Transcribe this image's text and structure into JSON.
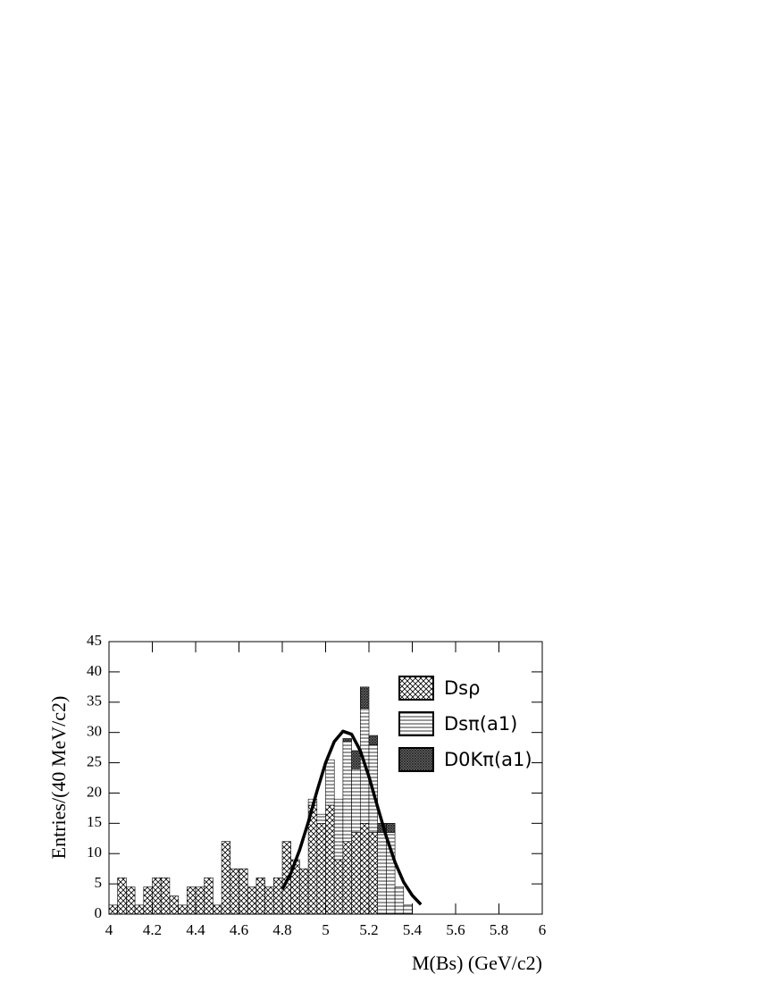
{
  "chart_data": {
    "type": "stacked_histogram",
    "xlabel": "M(Bs) (GeV/c2)",
    "ylabel": "Entries/(40 MeV/c2)",
    "bins": [
      4.0,
      4.04,
      4.08,
      4.12,
      4.16,
      4.2,
      4.24,
      4.28,
      4.32,
      4.36,
      4.4,
      4.44,
      4.48,
      4.52,
      4.56,
      4.6,
      4.64,
      4.68,
      4.72,
      4.76,
      4.8,
      4.84,
      4.88,
      4.92,
      4.96,
      5.0,
      5.04,
      5.08,
      5.12,
      5.16,
      5.2,
      5.24,
      5.28,
      5.32,
      5.36,
      5.4
    ],
    "series": [
      {
        "name": "Dsρ",
        "pattern": "crosshatch",
        "color": "#000000",
        "values": [
          1.5,
          6,
          4.5,
          1.5,
          4.5,
          6,
          6,
          3,
          1.5,
          4.5,
          4.5,
          6,
          1.5,
          12,
          7.5,
          7.5,
          4.5,
          6,
          4.5,
          6,
          12,
          9,
          7.5,
          18,
          15,
          18,
          9,
          12,
          13.5,
          15,
          13.5,
          0,
          0,
          0,
          0
        ]
      },
      {
        "name": "Dsπ(a1)",
        "pattern": "horizontal",
        "color": "#000000",
        "values": [
          0,
          0,
          0,
          0,
          0,
          0,
          0,
          0,
          0,
          0,
          0,
          0,
          0,
          0,
          0,
          0,
          0,
          0,
          0,
          0,
          0,
          0,
          0,
          1,
          1.5,
          7.5,
          10,
          16.5,
          10.5,
          19,
          14.5,
          13.5,
          13.5,
          4.5,
          1.5
        ]
      },
      {
        "name": "D0Kπ(a1)",
        "pattern": "dense",
        "color": "#000000",
        "values": [
          0,
          0,
          0,
          0,
          0,
          0,
          0,
          0,
          0,
          0,
          0,
          0,
          0,
          0,
          0,
          0,
          0,
          0,
          0,
          0,
          0,
          0,
          0,
          0,
          0,
          0,
          0,
          0.5,
          3,
          3.5,
          1.5,
          1.5,
          1.5,
          0,
          0
        ]
      }
    ],
    "fit": {
      "color": "#000000",
      "x": [
        4.8,
        4.84,
        4.88,
        4.92,
        4.96,
        5.0,
        5.04,
        5.08,
        5.12,
        5.16,
        5.2,
        5.24,
        5.28,
        5.32,
        5.36,
        5.4,
        5.44
      ],
      "values": [
        4.1,
        6.8,
        10.6,
        15.2,
        20.3,
        25.0,
        28.5,
        30.2,
        29.7,
        27.0,
        22.7,
        17.7,
        12.8,
        8.6,
        5.3,
        3.1,
        1.6
      ]
    },
    "xlim": [
      4,
      6
    ],
    "ylim": [
      0,
      45
    ],
    "xticks": [
      4,
      4.2,
      4.4,
      4.6,
      4.8,
      5,
      5.2,
      5.4,
      5.6,
      5.8,
      6
    ],
    "yticks": [
      0,
      5,
      10,
      15,
      20,
      25,
      30,
      35,
      40,
      45
    ]
  }
}
